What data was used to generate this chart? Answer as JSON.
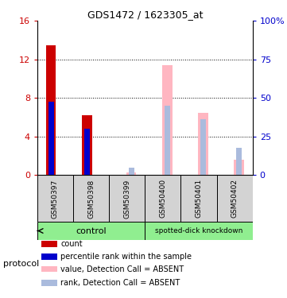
{
  "title": "GDS1472 / 1623305_at",
  "samples": [
    "GSM50397",
    "GSM50398",
    "GSM50399",
    "GSM50400",
    "GSM50401",
    "GSM50402"
  ],
  "count_values": [
    13.5,
    6.2,
    0,
    0,
    0,
    0
  ],
  "rank_values": [
    7.6,
    4.8,
    0,
    0,
    0,
    0
  ],
  "absent_value_values": [
    0,
    0,
    0.3,
    11.4,
    6.5,
    1.6
  ],
  "absent_rank_values": [
    0,
    0,
    0.8,
    7.2,
    5.8,
    2.8
  ],
  "ylim": [
    0,
    16
  ],
  "yticks_left": [
    0,
    4,
    8,
    12,
    16
  ],
  "ytick_labels_left": [
    "0",
    "4",
    "8",
    "12",
    "16"
  ],
  "ytick_labels_right": [
    "0",
    "25",
    "50",
    "75",
    "100%"
  ],
  "bar_width": 0.28,
  "color_count": "#CC0000",
  "color_rank": "#0000CC",
  "color_absent_value": "#FFB6C1",
  "color_absent_rank": "#AABBDD",
  "color_group_bg": "#90EE90",
  "color_sample_bg": "#D3D3D3",
  "legend_items": [
    {
      "label": "count",
      "color": "#CC0000"
    },
    {
      "label": "percentile rank within the sample",
      "color": "#0000CC"
    },
    {
      "label": "value, Detection Call = ABSENT",
      "color": "#FFB6C1"
    },
    {
      "label": "rank, Detection Call = ABSENT",
      "color": "#AABBDD"
    }
  ],
  "figsize": [
    3.61,
    3.75
  ],
  "dpi": 100
}
